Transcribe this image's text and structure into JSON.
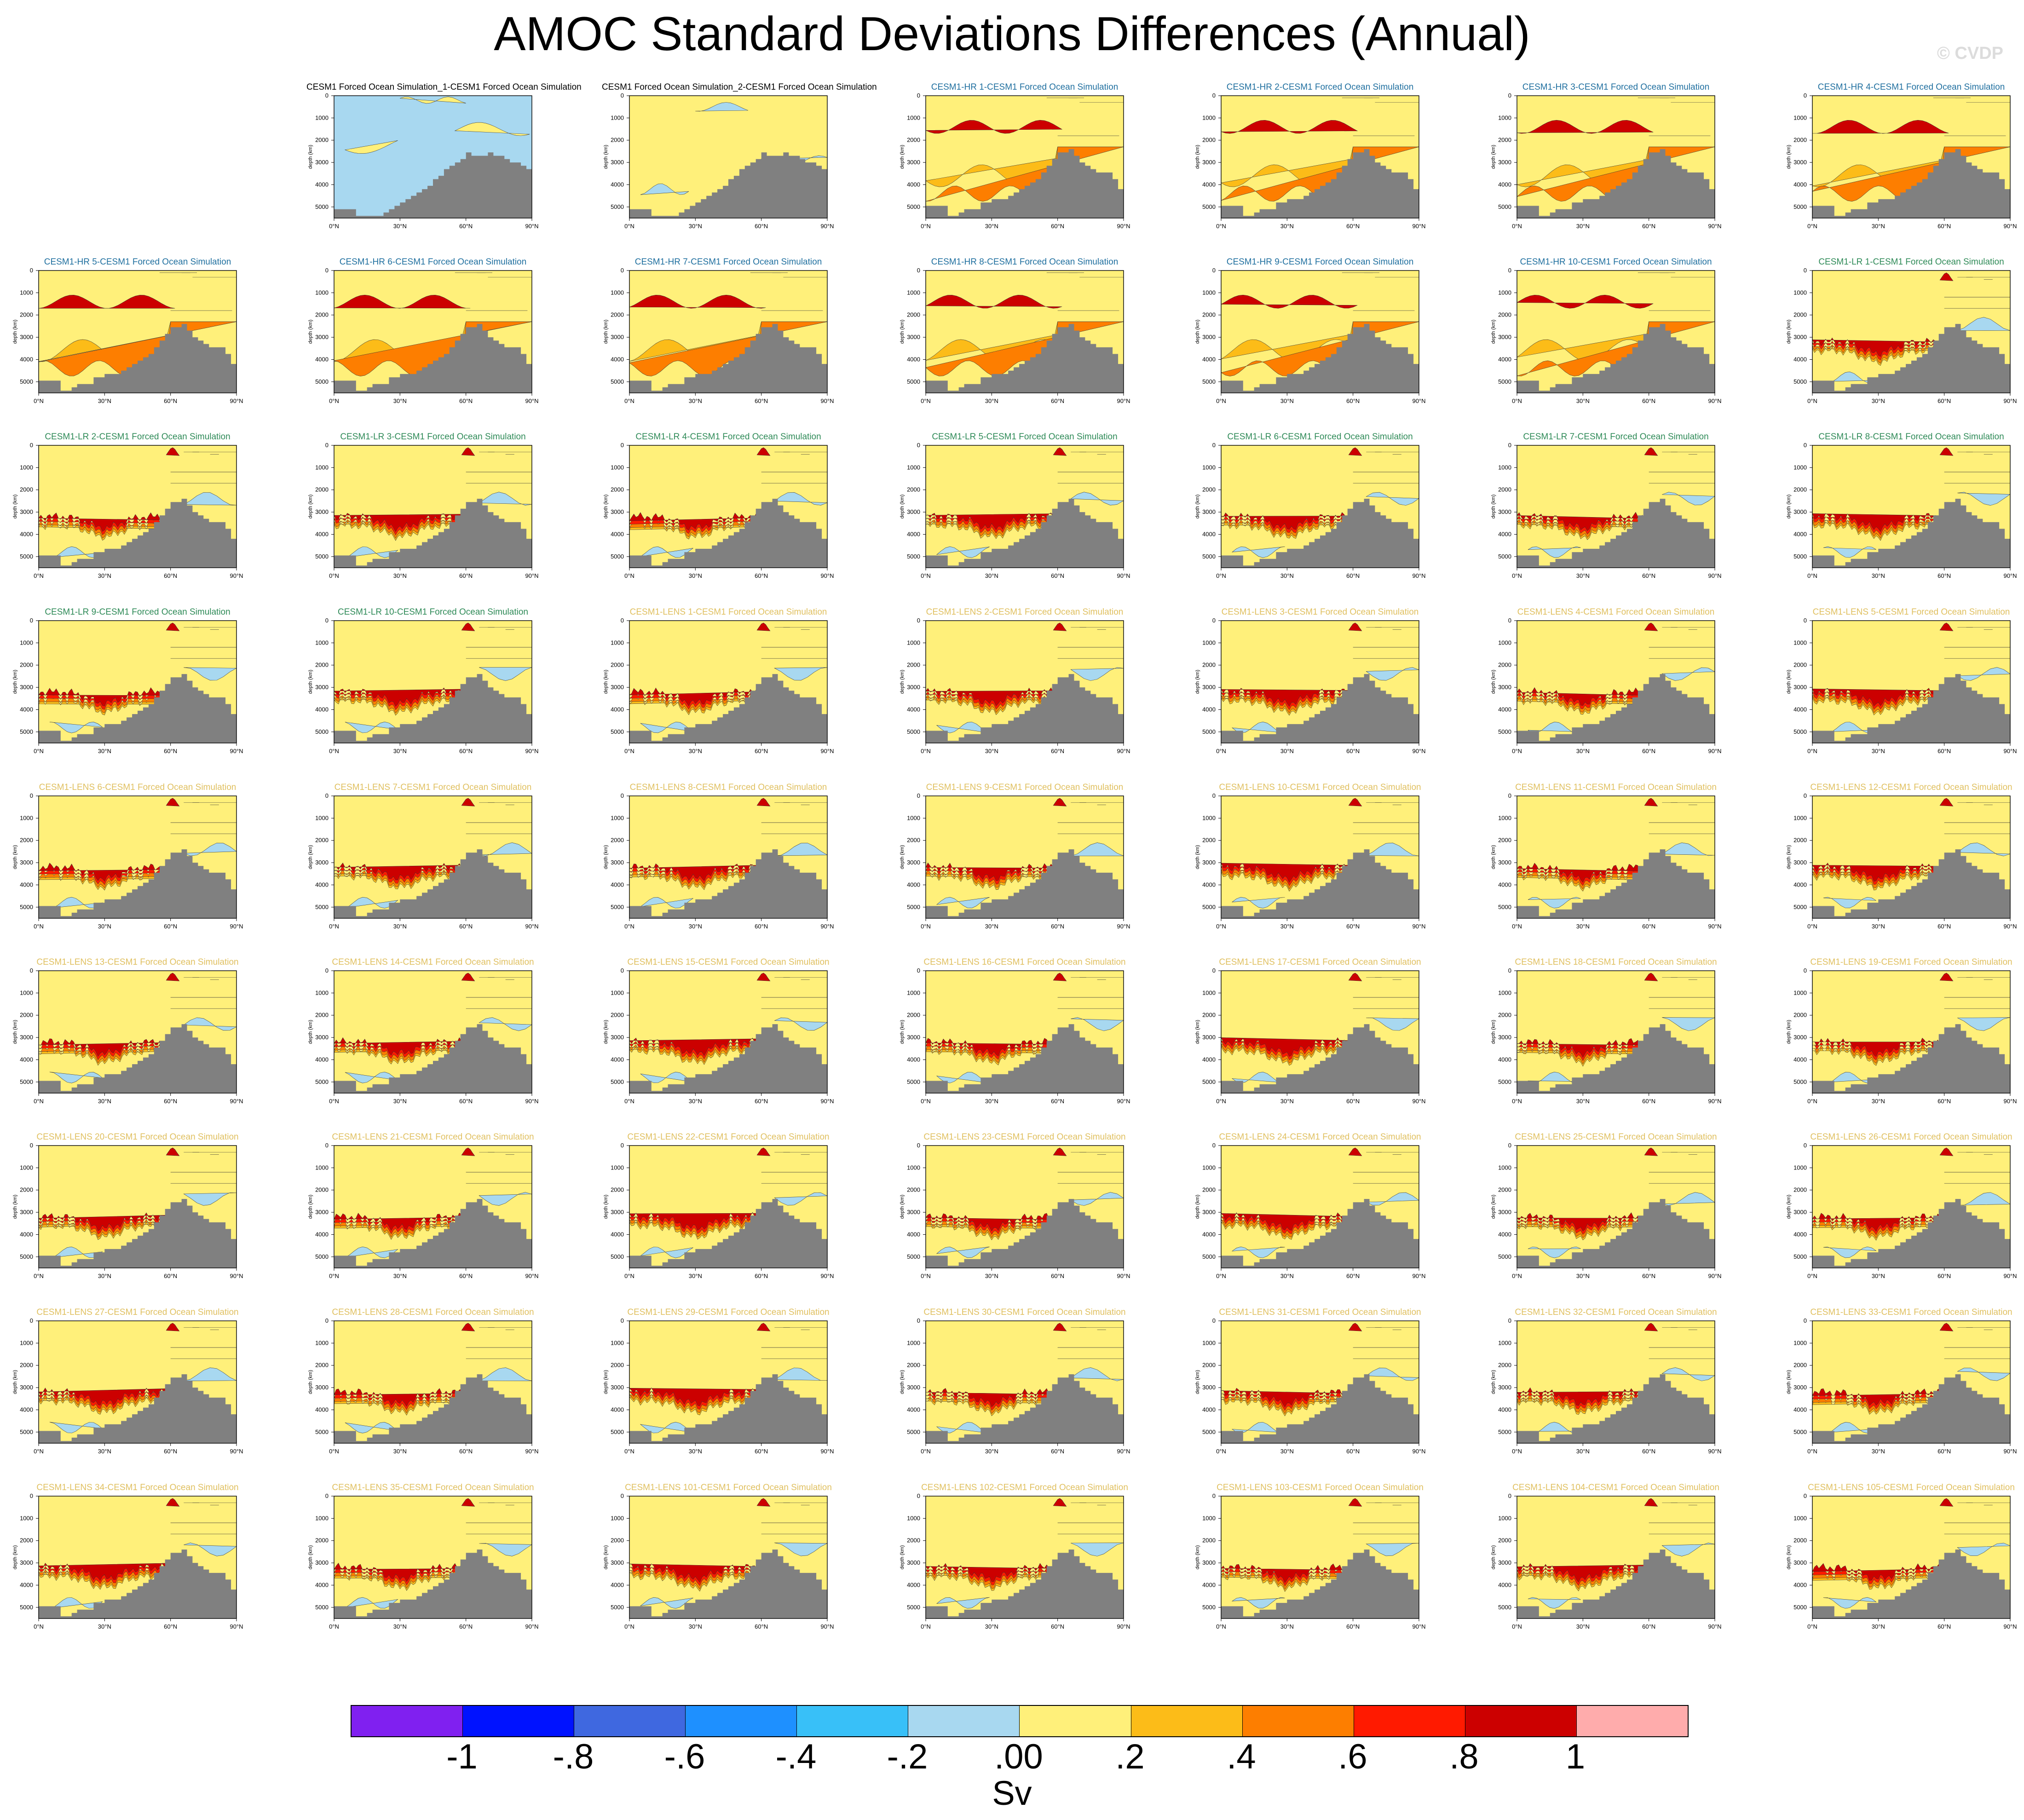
{
  "title": "AMOC Standard Deviations Differences (Annual)",
  "watermark": "© CVDP",
  "colors": {
    "title_hr": "#1f6f9f",
    "title_lr": "#2e8a57",
    "title_lens": "#e0c060",
    "title_obs": "#000000",
    "topography": "#808080"
  },
  "chart_data": {
    "type": "contour-panels",
    "xlabel": "",
    "ylabel": "depth (km)",
    "x_ticks": [
      "0°N",
      "30°N",
      "60°N",
      "90°N"
    ],
    "y_ticks": [
      "1000",
      "2000",
      "3000",
      "4000",
      "5000"
    ],
    "y_top_tick": "0",
    "xlim": [
      0,
      90
    ],
    "ylim": [
      5500,
      0
    ],
    "grid": "7 columns x 9 rows, first cell empty",
    "colorbar": {
      "units": "Sv",
      "labels": [
        "-1",
        "-.8",
        "-.6",
        "-.4",
        "-.2",
        ".00",
        ".2",
        ".4",
        ".6",
        ".8",
        "1"
      ],
      "levels": [
        -1.0,
        -0.8,
        -0.6,
        -0.4,
        -0.2,
        0.0,
        0.2,
        0.4,
        0.6,
        0.8,
        1.0
      ],
      "colors": [
        "#8020f0",
        "#0012ff",
        "#3f68e0",
        "#1e90ff",
        "#38c0f8",
        "#a8d8f0",
        "#fff07a",
        "#fcbc18",
        "#fd7e00",
        "#ff1a00",
        "#cc0000",
        "#ffacac"
      ]
    },
    "panels": [
      {
        "title": "CESM1 Forced Ocean Simulation_1-CESM1 Forced Ocean Simulation",
        "group": "obs",
        "pattern": "obs1"
      },
      {
        "title": "CESM1 Forced Ocean Simulation_2-CESM1 Forced Ocean Simulation",
        "group": "obs",
        "pattern": "obs2"
      },
      {
        "title": "CESM1-HR 1-CESM1 Forced Ocean Simulation",
        "group": "hr",
        "pattern": "hr"
      },
      {
        "title": "CESM1-HR 2-CESM1 Forced Ocean Simulation",
        "group": "hr",
        "pattern": "hr"
      },
      {
        "title": "CESM1-HR 3-CESM1 Forced Ocean Simulation",
        "group": "hr",
        "pattern": "hr"
      },
      {
        "title": "CESM1-HR 4-CESM1 Forced Ocean Simulation",
        "group": "hr",
        "pattern": "hr"
      },
      {
        "title": "CESM1-HR 5-CESM1 Forced Ocean Simulation",
        "group": "hr",
        "pattern": "hr"
      },
      {
        "title": "CESM1-HR 6-CESM1 Forced Ocean Simulation",
        "group": "hr",
        "pattern": "hr"
      },
      {
        "title": "CESM1-HR 7-CESM1 Forced Ocean Simulation",
        "group": "hr",
        "pattern": "hr"
      },
      {
        "title": "CESM1-HR 8-CESM1 Forced Ocean Simulation",
        "group": "hr",
        "pattern": "hr"
      },
      {
        "title": "CESM1-HR 9-CESM1 Forced Ocean Simulation",
        "group": "hr",
        "pattern": "hr"
      },
      {
        "title": "CESM1-HR 10-CESM1 Forced Ocean Simulation",
        "group": "hr",
        "pattern": "hr"
      },
      {
        "title": "CESM1-LR 1-CESM1 Forced Ocean Simulation",
        "group": "lr",
        "pattern": "lr"
      },
      {
        "title": "CESM1-LR 2-CESM1 Forced Ocean Simulation",
        "group": "lr",
        "pattern": "lr"
      },
      {
        "title": "CESM1-LR 3-CESM1 Forced Ocean Simulation",
        "group": "lr",
        "pattern": "lr"
      },
      {
        "title": "CESM1-LR 4-CESM1 Forced Ocean Simulation",
        "group": "lr",
        "pattern": "lr"
      },
      {
        "title": "CESM1-LR 5-CESM1 Forced Ocean Simulation",
        "group": "lr",
        "pattern": "lr"
      },
      {
        "title": "CESM1-LR 6-CESM1 Forced Ocean Simulation",
        "group": "lr",
        "pattern": "lr"
      },
      {
        "title": "CESM1-LR 7-CESM1 Forced Ocean Simulation",
        "group": "lr",
        "pattern": "lr"
      },
      {
        "title": "CESM1-LR 8-CESM1 Forced Ocean Simulation",
        "group": "lr",
        "pattern": "lr"
      },
      {
        "title": "CESM1-LR 9-CESM1 Forced Ocean Simulation",
        "group": "lr",
        "pattern": "lr"
      },
      {
        "title": "CESM1-LR 10-CESM1 Forced Ocean Simulation",
        "group": "lr",
        "pattern": "lr"
      },
      {
        "title": "CESM1-LENS 1-CESM1 Forced Ocean Simulation",
        "group": "lens",
        "pattern": "lens"
      },
      {
        "title": "CESM1-LENS 2-CESM1 Forced Ocean Simulation",
        "group": "lens",
        "pattern": "lens"
      },
      {
        "title": "CESM1-LENS 3-CESM1 Forced Ocean Simulation",
        "group": "lens",
        "pattern": "lens"
      },
      {
        "title": "CESM1-LENS 4-CESM1 Forced Ocean Simulation",
        "group": "lens",
        "pattern": "lens"
      },
      {
        "title": "CESM1-LENS 5-CESM1 Forced Ocean Simulation",
        "group": "lens",
        "pattern": "lens"
      },
      {
        "title": "CESM1-LENS 6-CESM1 Forced Ocean Simulation",
        "group": "lens",
        "pattern": "lens"
      },
      {
        "title": "CESM1-LENS 7-CESM1 Forced Ocean Simulation",
        "group": "lens",
        "pattern": "lens"
      },
      {
        "title": "CESM1-LENS 8-CESM1 Forced Ocean Simulation",
        "group": "lens",
        "pattern": "lens"
      },
      {
        "title": "CESM1-LENS 9-CESM1 Forced Ocean Simulation",
        "group": "lens",
        "pattern": "lens"
      },
      {
        "title": "CESM1-LENS 10-CESM1 Forced Ocean Simulation",
        "group": "lens",
        "pattern": "lens"
      },
      {
        "title": "CESM1-LENS 11-CESM1 Forced Ocean Simulation",
        "group": "lens",
        "pattern": "lens"
      },
      {
        "title": "CESM1-LENS 12-CESM1 Forced Ocean Simulation",
        "group": "lens",
        "pattern": "lens"
      },
      {
        "title": "CESM1-LENS 13-CESM1 Forced Ocean Simulation",
        "group": "lens",
        "pattern": "lens"
      },
      {
        "title": "CESM1-LENS 14-CESM1 Forced Ocean Simulation",
        "group": "lens",
        "pattern": "lens"
      },
      {
        "title": "CESM1-LENS 15-CESM1 Forced Ocean Simulation",
        "group": "lens",
        "pattern": "lens"
      },
      {
        "title": "CESM1-LENS 16-CESM1 Forced Ocean Simulation",
        "group": "lens",
        "pattern": "lens"
      },
      {
        "title": "CESM1-LENS 17-CESM1 Forced Ocean Simulation",
        "group": "lens",
        "pattern": "lens"
      },
      {
        "title": "CESM1-LENS 18-CESM1 Forced Ocean Simulation",
        "group": "lens",
        "pattern": "lens"
      },
      {
        "title": "CESM1-LENS 19-CESM1 Forced Ocean Simulation",
        "group": "lens",
        "pattern": "lens"
      },
      {
        "title": "CESM1-LENS 20-CESM1 Forced Ocean Simulation",
        "group": "lens",
        "pattern": "lens"
      },
      {
        "title": "CESM1-LENS 21-CESM1 Forced Ocean Simulation",
        "group": "lens",
        "pattern": "lens"
      },
      {
        "title": "CESM1-LENS 22-CESM1 Forced Ocean Simulation",
        "group": "lens",
        "pattern": "lens"
      },
      {
        "title": "CESM1-LENS 23-CESM1 Forced Ocean Simulation",
        "group": "lens",
        "pattern": "lens"
      },
      {
        "title": "CESM1-LENS 24-CESM1 Forced Ocean Simulation",
        "group": "lens",
        "pattern": "lens"
      },
      {
        "title": "CESM1-LENS 25-CESM1 Forced Ocean Simulation",
        "group": "lens",
        "pattern": "lens"
      },
      {
        "title": "CESM1-LENS 26-CESM1 Forced Ocean Simulation",
        "group": "lens",
        "pattern": "lens"
      },
      {
        "title": "CESM1-LENS 27-CESM1 Forced Ocean Simulation",
        "group": "lens",
        "pattern": "lens"
      },
      {
        "title": "CESM1-LENS 28-CESM1 Forced Ocean Simulation",
        "group": "lens",
        "pattern": "lens"
      },
      {
        "title": "CESM1-LENS 29-CESM1 Forced Ocean Simulation",
        "group": "lens",
        "pattern": "lens"
      },
      {
        "title": "CESM1-LENS 30-CESM1 Forced Ocean Simulation",
        "group": "lens",
        "pattern": "lens"
      },
      {
        "title": "CESM1-LENS 31-CESM1 Forced Ocean Simulation",
        "group": "lens",
        "pattern": "lens"
      },
      {
        "title": "CESM1-LENS 32-CESM1 Forced Ocean Simulation",
        "group": "lens",
        "pattern": "lens"
      },
      {
        "title": "CESM1-LENS 33-CESM1 Forced Ocean Simulation",
        "group": "lens",
        "pattern": "lens"
      },
      {
        "title": "CESM1-LENS 34-CESM1 Forced Ocean Simulation",
        "group": "lens",
        "pattern": "lens"
      },
      {
        "title": "CESM1-LENS 35-CESM1 Forced Ocean Simulation",
        "group": "lens",
        "pattern": "lens"
      },
      {
        "title": "CESM1-LENS 101-CESM1 Forced Ocean Simulation",
        "group": "lens",
        "pattern": "lens"
      },
      {
        "title": "CESM1-LENS 102-CESM1 Forced Ocean Simulation",
        "group": "lens",
        "pattern": "lens"
      },
      {
        "title": "CESM1-LENS 103-CESM1 Forced Ocean Simulation",
        "group": "lens",
        "pattern": "lens"
      },
      {
        "title": "CESM1-LENS 104-CESM1 Forced Ocean Simulation",
        "group": "lens",
        "pattern": "lens"
      },
      {
        "title": "CESM1-LENS 105-CESM1 Forced Ocean Simulation",
        "group": "lens",
        "pattern": "lens"
      }
    ]
  }
}
